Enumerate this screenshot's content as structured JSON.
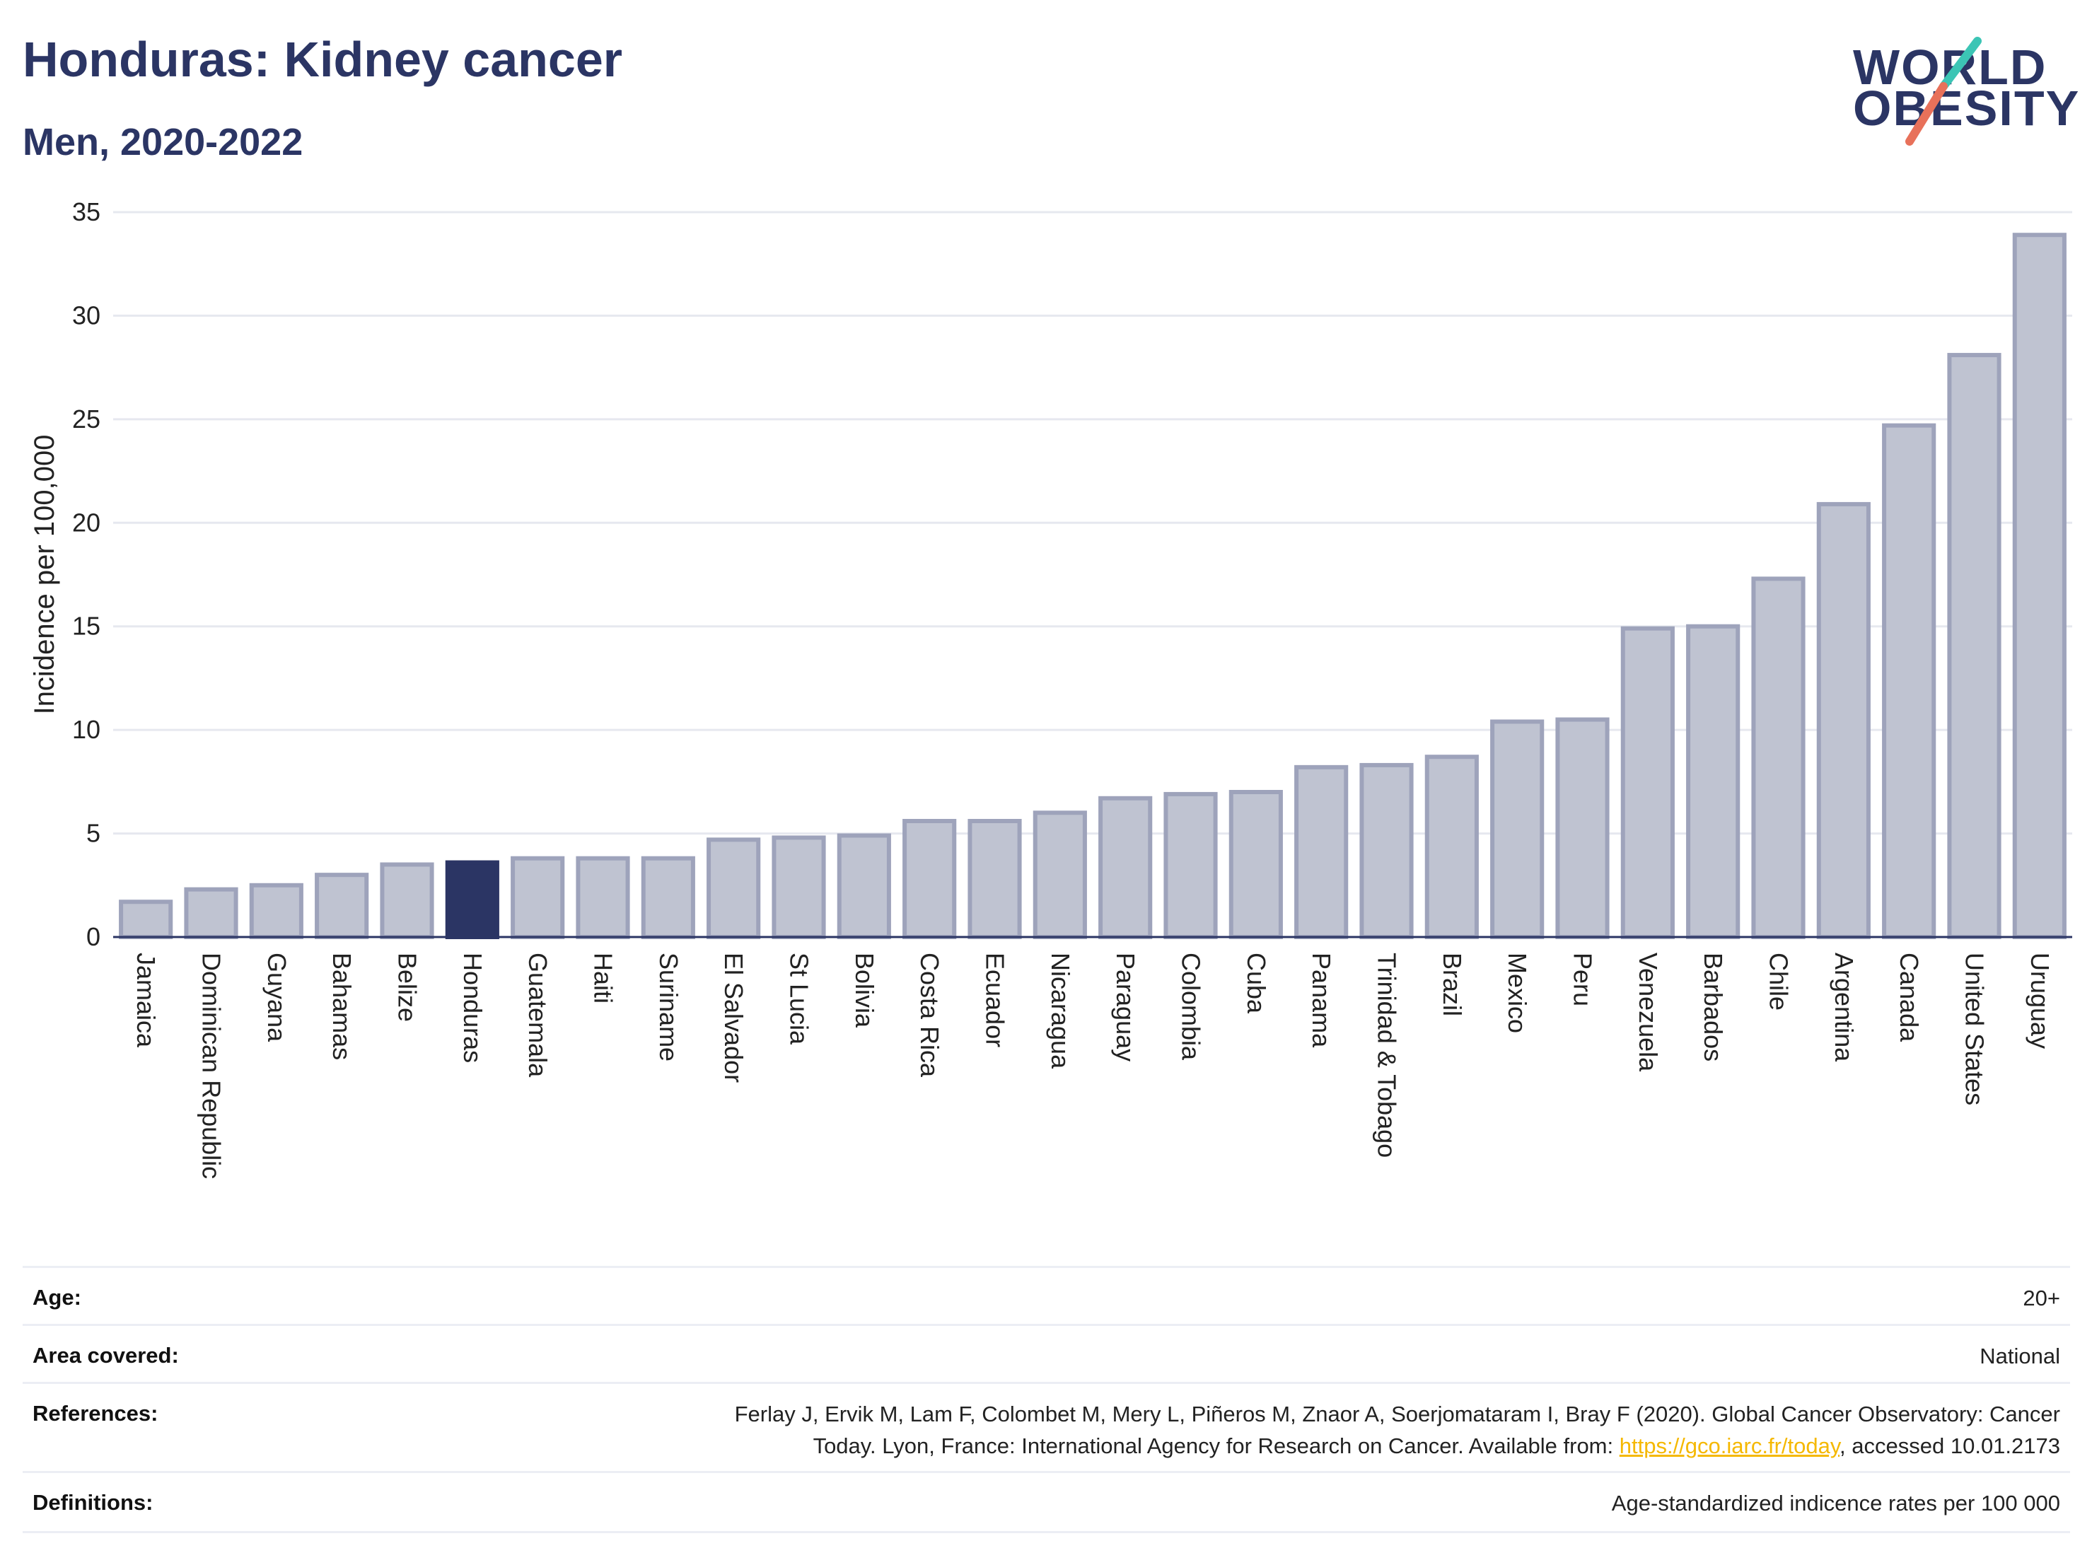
{
  "header": {
    "title": "Honduras: Kidney cancer",
    "subtitle": "Men, 2020-2022"
  },
  "logo": {
    "line1": "WORLD",
    "line2": "OBESITY",
    "slash_color_top": "#3cc5b5",
    "slash_color_bottom": "#e8715a"
  },
  "colors": {
    "bar": "#bfc3d1",
    "bar_edge": "#9ea3bb",
    "highlight": "#2b3564",
    "grid": "#e6e8ef",
    "text": "#2b3564",
    "link": "#f5b800"
  },
  "chart_data": {
    "type": "bar",
    "ylabel": "Incidence per 100,000",
    "xlabel": "",
    "ylim": [
      0,
      35
    ],
    "yticks": [
      0,
      5,
      10,
      15,
      20,
      25,
      30,
      35
    ],
    "grid": true,
    "highlight": "Honduras",
    "categories": [
      "Jamaica",
      "Dominican Republic",
      "Guyana",
      "Bahamas",
      "Belize",
      "Honduras",
      "Guatemala",
      "Haiti",
      "Suriname",
      "El Salvador",
      "St Lucia",
      "Bolivia",
      "Costa Rica",
      "Ecuador",
      "Nicaragua",
      "Paraguay",
      "Colombia",
      "Cuba",
      "Panama",
      "Trinidad & Tobago",
      "Brazil",
      "Mexico",
      "Peru",
      "Venezuela",
      "Barbados",
      "Chile",
      "Argentina",
      "Canada",
      "United States",
      "Uruguay"
    ],
    "values": [
      1.7,
      2.3,
      2.5,
      3.0,
      3.5,
      3.6,
      3.8,
      3.8,
      3.8,
      4.7,
      4.8,
      4.9,
      5.6,
      5.6,
      6.0,
      6.7,
      6.9,
      7.0,
      8.2,
      8.3,
      8.7,
      10.4,
      10.5,
      14.9,
      15.0,
      17.3,
      20.9,
      24.7,
      28.1,
      33.9
    ]
  },
  "meta": {
    "age_label": "Age:",
    "age_value": "20+",
    "area_label": "Area covered:",
    "area_value": "National",
    "references_label": "References:",
    "references_line1": "Ferlay J, Ervik M, Lam F, Colombet M, Mery L, Piñeros M, Znaor A, Soerjomataram I, Bray F (2020). Global Cancer Observatory: Cancer",
    "references_line2_pre": "Today. Lyon, France: International Agency for Research on Cancer. Available from: ",
    "references_link": "https://gco.iarc.fr/today",
    "references_line2_post": ", accessed 10.01.2173",
    "definitions_label": "Definitions:",
    "definitions_value": "Age-standardized indicence rates per 100 000"
  }
}
